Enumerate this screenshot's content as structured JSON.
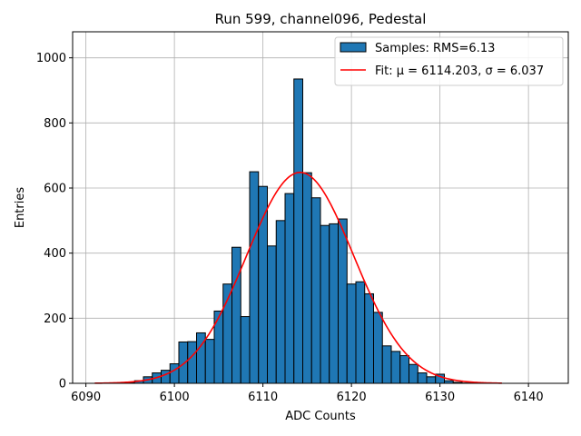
{
  "chart_data": {
    "type": "bar",
    "title": "Run 599, channel096, Pedestal",
    "xlabel": "ADC Counts",
    "ylabel": "Entries",
    "xlim": [
      6088.5,
      6144.5
    ],
    "ylim": [
      0,
      1080
    ],
    "xticks": [
      6090,
      6100,
      6110,
      6120,
      6130,
      6140
    ],
    "yticks": [
      0,
      200,
      400,
      600,
      800,
      1000
    ],
    "grid": true,
    "legend_position": "top-right",
    "series": [
      {
        "name": "Samples: RMS=6.13",
        "kind": "histogram",
        "color": "#1f77b4",
        "edgecolor": "#000000",
        "bin_width": 1,
        "bins": [
          {
            "x": 6094,
            "count": 1
          },
          {
            "x": 6095,
            "count": 3
          },
          {
            "x": 6096,
            "count": 8
          },
          {
            "x": 6097,
            "count": 20
          },
          {
            "x": 6098,
            "count": 32
          },
          {
            "x": 6099,
            "count": 40
          },
          {
            "x": 6100,
            "count": 60
          },
          {
            "x": 6101,
            "count": 127
          },
          {
            "x": 6102,
            "count": 128
          },
          {
            "x": 6103,
            "count": 155
          },
          {
            "x": 6104,
            "count": 135
          },
          {
            "x": 6105,
            "count": 222
          },
          {
            "x": 6106,
            "count": 305
          },
          {
            "x": 6107,
            "count": 418
          },
          {
            "x": 6108,
            "count": 205
          },
          {
            "x": 6109,
            "count": 650
          },
          {
            "x": 6110,
            "count": 605
          },
          {
            "x": 6111,
            "count": 422
          },
          {
            "x": 6112,
            "count": 500
          },
          {
            "x": 6113,
            "count": 583
          },
          {
            "x": 6114,
            "count": 935
          },
          {
            "x": 6115,
            "count": 647
          },
          {
            "x": 6116,
            "count": 570
          },
          {
            "x": 6117,
            "count": 485
          },
          {
            "x": 6118,
            "count": 490
          },
          {
            "x": 6119,
            "count": 505
          },
          {
            "x": 6120,
            "count": 305
          },
          {
            "x": 6121,
            "count": 312
          },
          {
            "x": 6122,
            "count": 275
          },
          {
            "x": 6123,
            "count": 218
          },
          {
            "x": 6124,
            "count": 115
          },
          {
            "x": 6125,
            "count": 98
          },
          {
            "x": 6126,
            "count": 85
          },
          {
            "x": 6127,
            "count": 58
          },
          {
            "x": 6128,
            "count": 32
          },
          {
            "x": 6129,
            "count": 20
          },
          {
            "x": 6130,
            "count": 28
          },
          {
            "x": 6131,
            "count": 8
          },
          {
            "x": 6132,
            "count": 3
          },
          {
            "x": 6133,
            "count": 1
          }
        ]
      },
      {
        "name": "Fit: μ = 6114.203, σ = 6.037",
        "kind": "gaussian-fit-line",
        "color": "#ff0000",
        "mu": 6114.203,
        "sigma": 6.037,
        "amplitude": 648,
        "x_range": [
          6091,
          6137
        ]
      }
    ]
  }
}
